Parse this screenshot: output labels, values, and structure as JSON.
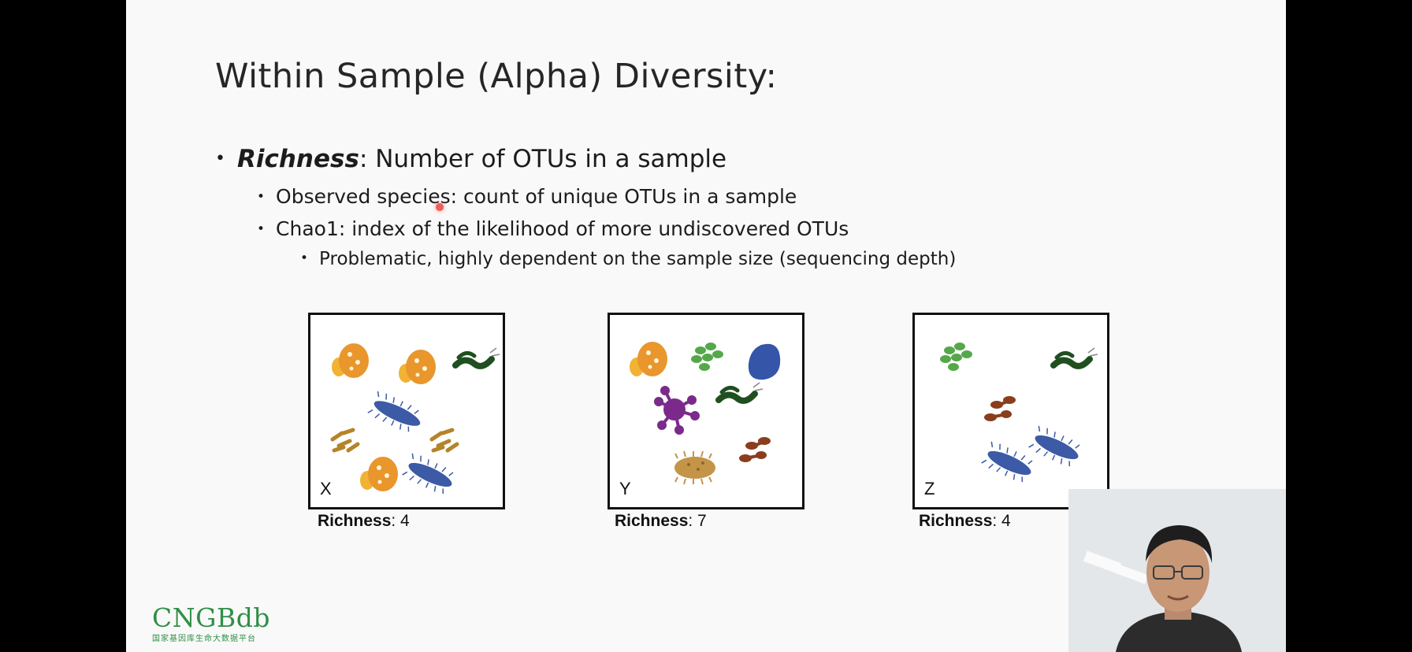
{
  "slide": {
    "title": "Within Sample (Alpha) Diversity:",
    "bullet_main": {
      "term": "Richness",
      "rest": ": Number of OTUs in a sample"
    },
    "sub_bullets": [
      "Observed species: count of unique OTUs in a sample",
      "Chao1: index of the likelihood of more undiscovered OTUs"
    ],
    "sub_sub_bullet": "Problematic, highly dependent on the sample size (sequencing depth)",
    "samples": [
      {
        "letter": "X",
        "label": "Richness",
        "value": ": 4"
      },
      {
        "letter": "Y",
        "label": "Richness",
        "value": ": 7"
      },
      {
        "letter": "Z",
        "label": "Richness",
        "value": ": 4"
      }
    ]
  },
  "logo": {
    "text": "CNGBdb",
    "subtitle": "国家基因库生命大数据平台"
  },
  "colors": {
    "logo_green": "#2f8f47",
    "slide_bg": "#f9f9f9",
    "laser": "#e53935"
  },
  "icons": [
    "orange-cell-icon",
    "green-worm-icon",
    "blue-bacillus-icon",
    "brown-rods-icon",
    "green-cluster-icon",
    "blue-blob-icon",
    "purple-virus-icon",
    "tan-spiked-icon",
    "brown-dumbbell-icon"
  ]
}
